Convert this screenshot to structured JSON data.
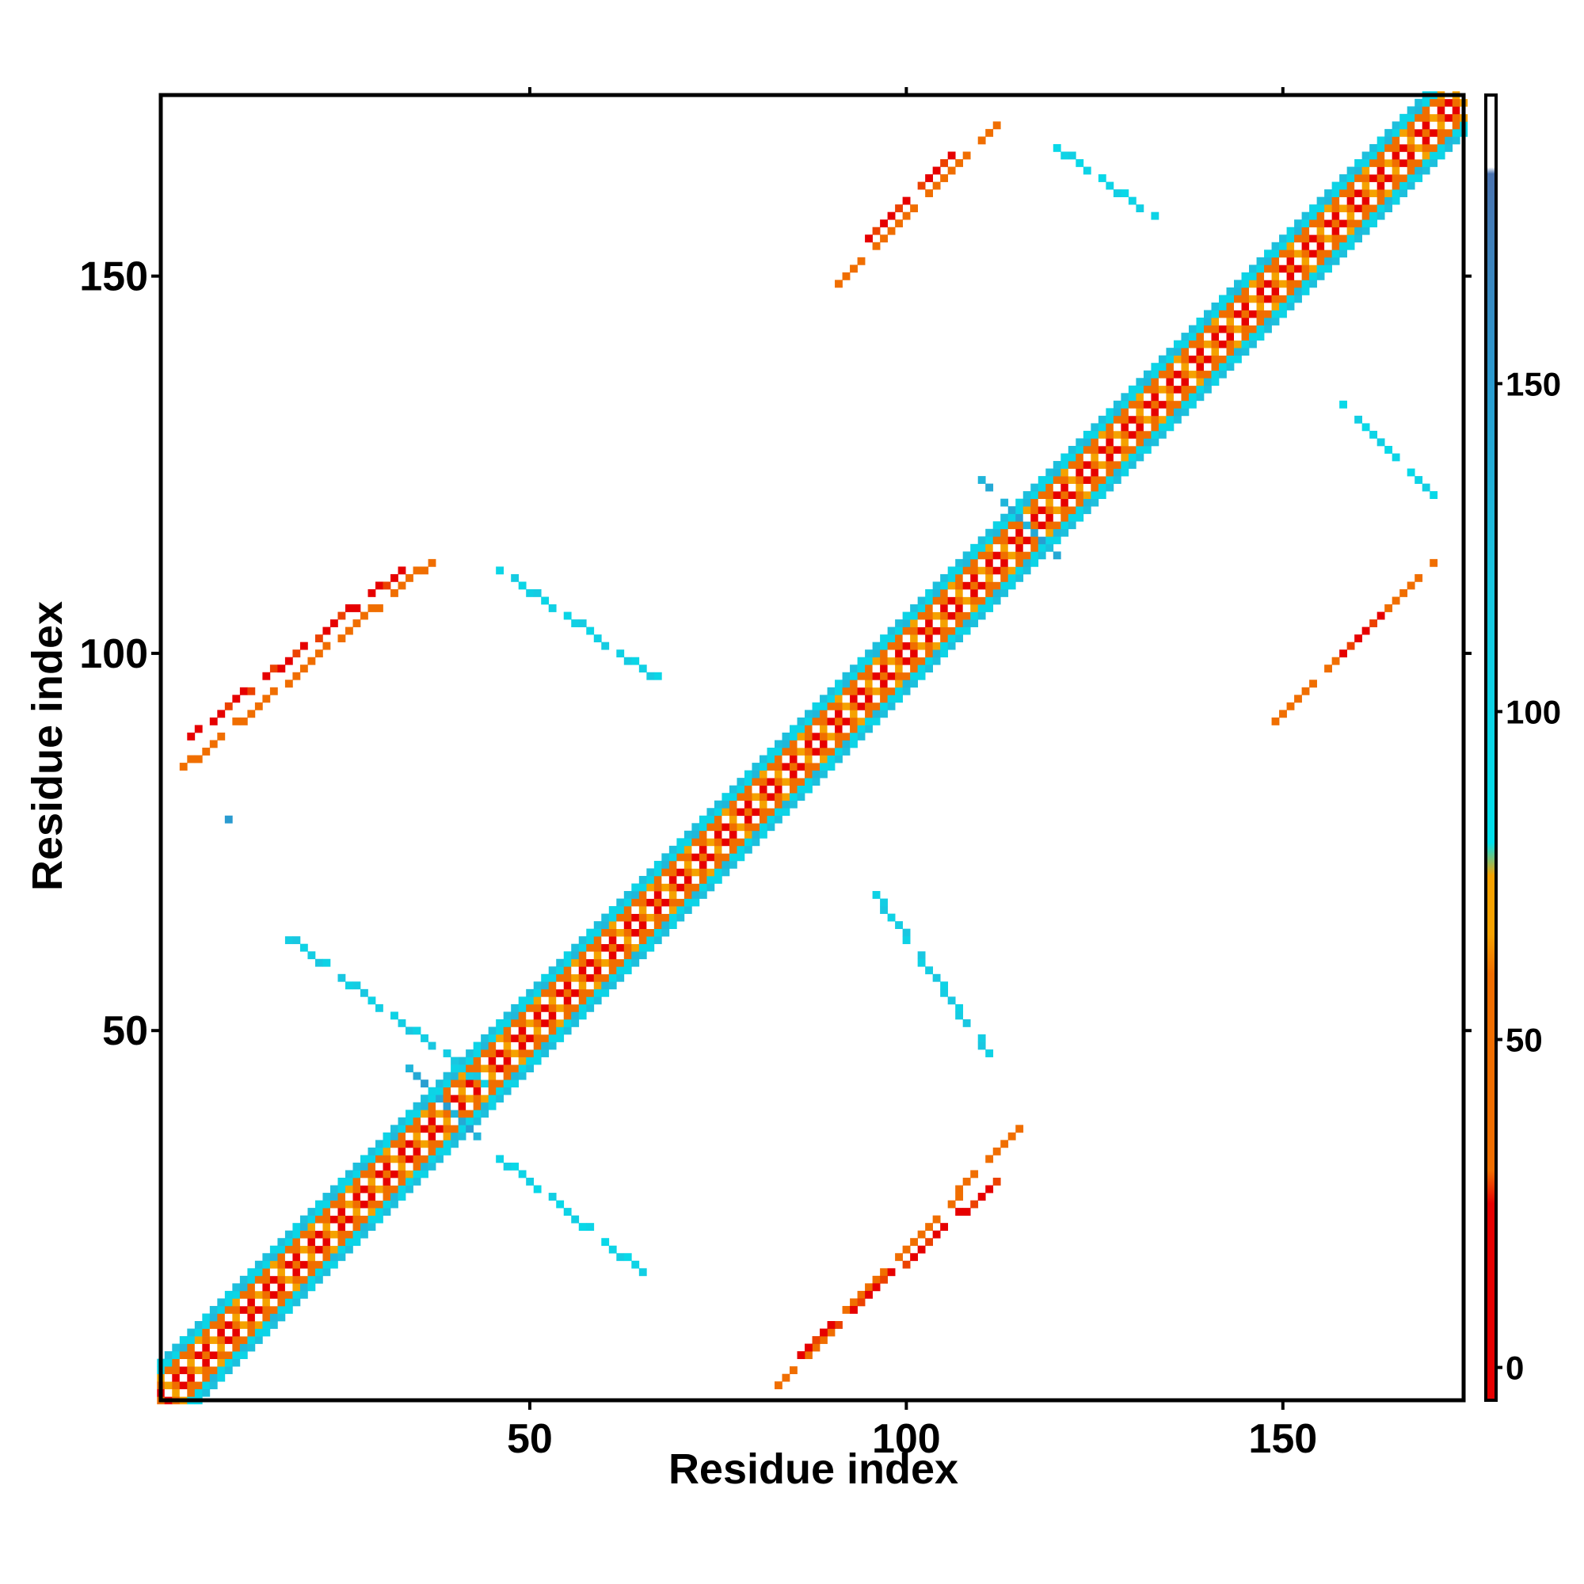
{
  "chart_data": {
    "type": "heatmap",
    "title": "",
    "xlabel": "Residue index",
    "ylabel": "Residue index",
    "xlim": [
      1,
      174
    ],
    "ylim": [
      1,
      174
    ],
    "x_ticks": [
      50,
      100,
      150
    ],
    "y_ticks": [
      50,
      100,
      150
    ],
    "grid": false,
    "colorbar": {
      "placement": "right",
      "range": [
        -5,
        194
      ],
      "ticks": [
        0,
        50,
        100,
        150
      ],
      "stops": [
        {
          "value": -5,
          "color": "#e60000"
        },
        {
          "value": 25,
          "color": "#e60000"
        },
        {
          "value": 30,
          "color": "#f06e00"
        },
        {
          "value": 60,
          "color": "#f06e00"
        },
        {
          "value": 66,
          "color": "#f5a200"
        },
        {
          "value": 75,
          "color": "#f5a200"
        },
        {
          "value": 80,
          "color": "#00e0eb"
        },
        {
          "value": 120,
          "color": "#1ac6e0"
        },
        {
          "value": 150,
          "color": "#2a9bd0"
        },
        {
          "value": 182,
          "color": "#4a73b0"
        },
        {
          "value": 183,
          "color": "#ffffff"
        },
        {
          "value": 194,
          "color": "#ffffff"
        }
      ]
    },
    "diagonal_band": {
      "x_from": 1,
      "x_to": 174,
      "half_width": 5
    },
    "off_diagonal_segments": [
      {
        "x1": 3,
        "y1": 84,
        "x2": 38,
        "y2": 113,
        "value": 40
      },
      {
        "x1": 5,
        "y1": 89,
        "x2": 33,
        "y2": 111,
        "value": 20
      },
      {
        "x1": 46,
        "y1": 111,
        "x2": 68,
        "y2": 96,
        "value": 105
      },
      {
        "x1": 17,
        "y1": 63,
        "x2": 44,
        "y2": 43,
        "value": 110
      },
      {
        "x1": 45,
        "y1": 34,
        "x2": 65,
        "y2": 18,
        "value": 100
      },
      {
        "x1": 83,
        "y1": 3,
        "x2": 115,
        "y2": 37,
        "value": 40
      },
      {
        "x1": 86,
        "y1": 7,
        "x2": 112,
        "y2": 30,
        "value": 20
      },
      {
        "x1": 96,
        "y1": 68,
        "x2": 111,
        "y2": 47,
        "value": 110
      },
      {
        "x1": 91,
        "y1": 149,
        "x2": 112,
        "y2": 170,
        "value": 50
      },
      {
        "x1": 94,
        "y1": 154,
        "x2": 106,
        "y2": 166,
        "value": 20
      },
      {
        "x1": 120,
        "y1": 167,
        "x2": 133,
        "y2": 158,
        "value": 100
      },
      {
        "x1": 149,
        "y1": 91,
        "x2": 170,
        "y2": 112,
        "value": 50
      },
      {
        "x1": 157,
        "y1": 99,
        "x2": 164,
        "y2": 106,
        "value": 20
      },
      {
        "x1": 158,
        "y1": 133,
        "x2": 170,
        "y2": 121,
        "value": 100
      },
      {
        "x1": 34,
        "y1": 45,
        "x2": 44,
        "y2": 35,
        "value": 140
      },
      {
        "x1": 110,
        "y1": 123,
        "x2": 120,
        "y2": 113,
        "value": 140
      },
      {
        "x1": 10,
        "y1": 78,
        "x2": 10,
        "y2": 78,
        "value": 150
      }
    ]
  }
}
